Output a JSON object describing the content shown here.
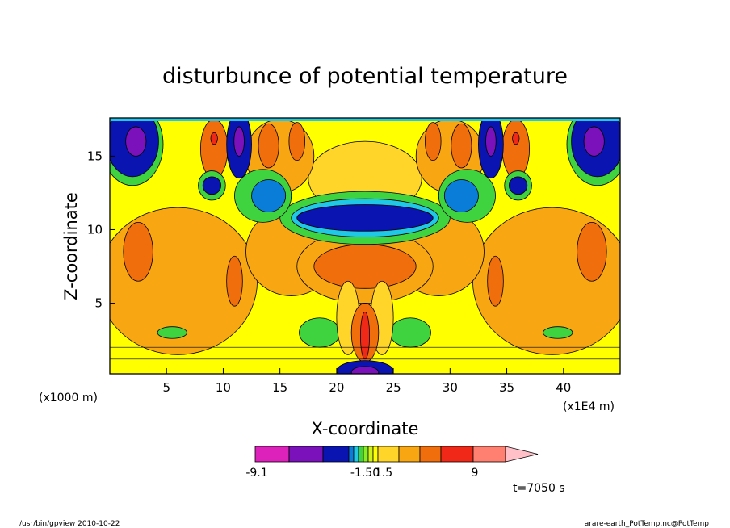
{
  "chart_data": {
    "type": "heatmap",
    "title": "disturbunce of potential temperature",
    "xlabel": "X-coordinate",
    "ylabel": "Z-coordinate",
    "x_unit_left": "(x1000 m)",
    "x_unit_right": "(x1E4 m)",
    "x_ticks": [
      "5",
      "10",
      "15",
      "20",
      "25",
      "30",
      "35",
      "40"
    ],
    "y_ticks": [
      "5",
      "10",
      "15"
    ],
    "xlim": [
      0,
      45
    ],
    "ylim": [
      0.2,
      17.6
    ],
    "colorbar": {
      "labels": [
        "-9.1",
        "-1.50",
        "1.5",
        "9"
      ],
      "colors": [
        "#dd22bb",
        "#7a11bb",
        "#0a14b0",
        "#0a7dd8",
        "#20c8e6",
        "#3fd33f",
        "#88ee22",
        "#cef21a",
        "#ffff00",
        "#ffd52a",
        "#f8a712",
        "#f06e0c",
        "#f02818",
        "#ff8070",
        "#ffc0c8"
      ]
    },
    "time_label": "t=7050 s",
    "footer_left": "/usr/bin/gpview  2010-10-22",
    "footer_right": "arare-earth_PotTemp.nc@PotTemp"
  }
}
